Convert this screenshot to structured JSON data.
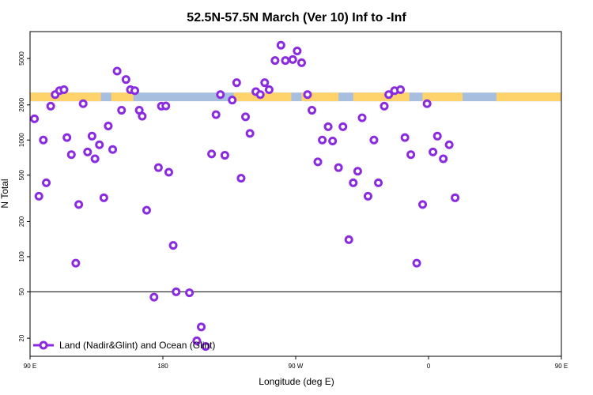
{
  "chart_data": {
    "type": "scatter",
    "title": "52.5N-57.5N March (Ver 10)   Inf to -Inf",
    "xlabel": "Longitude (deg E)",
    "ylabel": "N Total",
    "xlim": [
      90,
      450
    ],
    "ylim": [
      14,
      8500
    ],
    "y_scale": "log",
    "x_ticks": [
      {
        "value": 90,
        "label": "90 E"
      },
      {
        "value": 180,
        "label": "180"
      },
      {
        "value": 270,
        "label": "90 W"
      },
      {
        "value": 360,
        "label": "0"
      },
      {
        "value": 450,
        "label": "90 E"
      },
      {
        "value": 540,
        "label": "180"
      }
    ],
    "y_ticks": [
      {
        "value": 20,
        "label": "20"
      },
      {
        "value": 50,
        "label": "50"
      },
      {
        "value": 100,
        "label": "100"
      },
      {
        "value": 200,
        "label": "200"
      },
      {
        "value": 500,
        "label": "500"
      },
      {
        "value": 1000,
        "label": "1000"
      },
      {
        "value": 2000,
        "label": "2000"
      },
      {
        "value": 5000,
        "label": "5000"
      }
    ],
    "reference_line": 50,
    "legend_position": "bottom-left",
    "land_ocean_band": {
      "y_range": [
        2150,
        2550
      ],
      "ocean_color": "#a8bedf",
      "land_color": "#ffd36b",
      "land_segments": [
        [
          90,
          138
        ],
        [
          145,
          160
        ],
        [
          228,
          267
        ],
        [
          274,
          299
        ],
        [
          309,
          347
        ],
        [
          356,
          383
        ],
        [
          406,
          462
        ],
        [
          471,
          474
        ],
        [
          482,
          490
        ],
        [
          496,
          498
        ]
      ]
    },
    "series": [
      {
        "name": "Land (Nadir&Glint) and Ocean (Glint)",
        "color": "#8a2be2",
        "points": [
          [
            93,
            1520
          ],
          [
            96,
            330
          ],
          [
            99,
            1000
          ],
          [
            101,
            430
          ],
          [
            104,
            1950
          ],
          [
            107,
            2450
          ],
          [
            110,
            2650
          ],
          [
            113,
            2700
          ],
          [
            115,
            1050
          ],
          [
            118,
            750
          ],
          [
            121,
            88
          ],
          [
            123,
            280
          ],
          [
            126,
            2050
          ],
          [
            129,
            790
          ],
          [
            132,
            1080
          ],
          [
            134,
            690
          ],
          [
            137,
            910
          ],
          [
            140,
            320
          ],
          [
            143,
            1320
          ],
          [
            146,
            830
          ],
          [
            149,
            3900
          ],
          [
            152,
            1800
          ],
          [
            155,
            3300
          ],
          [
            158,
            2700
          ],
          [
            161,
            2650
          ],
          [
            164,
            1800
          ],
          [
            166,
            1600
          ],
          [
            169,
            250
          ],
          [
            174,
            45
          ],
          [
            177,
            580
          ],
          [
            179,
            1950
          ],
          [
            182,
            1960
          ],
          [
            184,
            530
          ],
          [
            187,
            125
          ],
          [
            189,
            50
          ],
          [
            198,
            49
          ],
          [
            203,
            19
          ],
          [
            206,
            25
          ],
          [
            209,
            17
          ],
          [
            213,
            760
          ],
          [
            216,
            1650
          ],
          [
            219,
            2450
          ],
          [
            222,
            740
          ],
          [
            227,
            2200
          ],
          [
            230,
            3100
          ],
          [
            233,
            470
          ],
          [
            236,
            1580
          ],
          [
            239,
            1140
          ],
          [
            243,
            2600
          ],
          [
            246,
            2450
          ],
          [
            249,
            3100
          ],
          [
            252,
            2700
          ],
          [
            256,
            4800
          ],
          [
            260,
            6500
          ],
          [
            263,
            4800
          ],
          [
            268,
            4900
          ],
          [
            271,
            5800
          ],
          [
            274,
            4600
          ],
          [
            278,
            2450
          ],
          [
            281,
            1800
          ],
          [
            285,
            650
          ],
          [
            288,
            1000
          ],
          [
            292,
            1300
          ],
          [
            295,
            980
          ],
          [
            299,
            580
          ],
          [
            302,
            1300
          ],
          [
            306,
            140
          ],
          [
            309,
            430
          ],
          [
            312,
            540
          ],
          [
            315,
            1550
          ],
          [
            319,
            330
          ],
          [
            323,
            1000
          ],
          [
            326,
            430
          ],
          [
            330,
            1950
          ],
          [
            333,
            2450
          ],
          [
            337,
            2650
          ],
          [
            341,
            2700
          ],
          [
            344,
            1050
          ],
          [
            348,
            750
          ],
          [
            352,
            88
          ],
          [
            356,
            280
          ],
          [
            359,
            2050
          ],
          [
            363,
            790
          ],
          [
            366,
            1080
          ],
          [
            370,
            690
          ],
          [
            374,
            910
          ],
          [
            378,
            320
          ]
        ]
      }
    ]
  }
}
